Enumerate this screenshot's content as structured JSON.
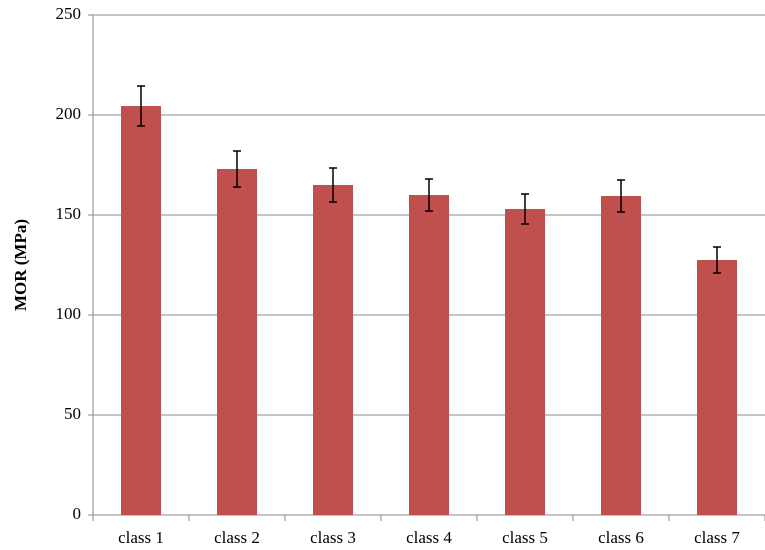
{
  "chart_data": {
    "type": "bar",
    "y_label": "MOR (MPa)",
    "categories": [
      "class 1",
      "class 2",
      "class 3",
      "class 4",
      "class 5",
      "class 6",
      "class 7"
    ],
    "values": [
      204.5,
      173,
      165,
      160,
      153,
      159.5,
      127.5
    ],
    "errors": [
      10,
      9,
      8.5,
      8,
      7.5,
      8,
      6.5
    ],
    "color": "#c0504d",
    "ylim": [
      0,
      250
    ],
    "yticks": [
      0,
      50,
      100,
      150,
      200,
      250
    ],
    "grid": true
  }
}
